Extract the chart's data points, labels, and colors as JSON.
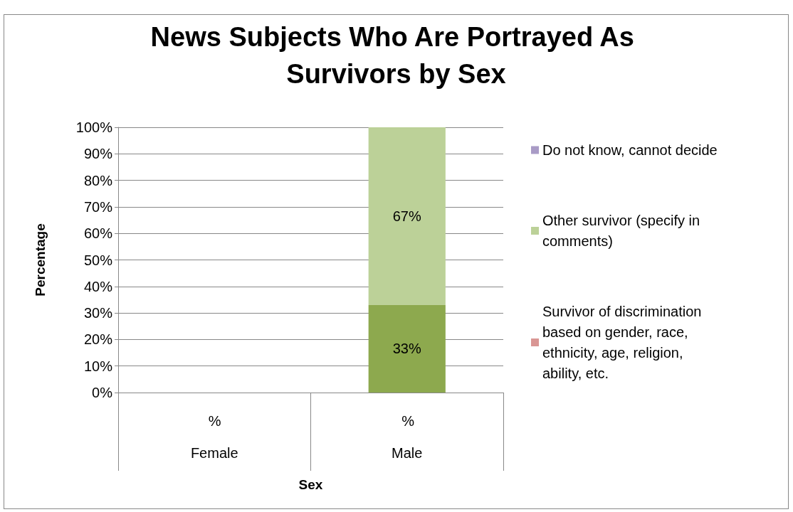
{
  "chart_data": {
    "type": "bar",
    "title": "News Subjects Who Are Portrayed As Survivors by Sex",
    "xlabel": "Sex",
    "ylabel": "Percentage",
    "categories": [
      "Female",
      "Male"
    ],
    "stacked": true,
    "series": [
      {
        "name": "Survivor of discrimination based on gender, race, ethnicity, age, religion, ability, etc.",
        "color": "#d99694",
        "values": [
          null,
          null
        ]
      },
      {
        "color": "#8da94e",
        "values": [
          null,
          33
        ],
        "value_labels": [
          null,
          "33%"
        ]
      },
      {
        "name": "Other survivor (specify in comments)",
        "color": "#bcd198",
        "values": [
          null,
          67
        ],
        "value_labels": [
          null,
          "67%"
        ]
      },
      {
        "name": "Do not know, cannot decide",
        "color": "#a99bc6",
        "values": [
          null,
          null
        ]
      }
    ],
    "ylim": [
      0,
      100
    ],
    "yticks": [
      {
        "value": 0,
        "label": "0%"
      },
      {
        "value": 10,
        "label": "10%"
      },
      {
        "value": 20,
        "label": "20%"
      },
      {
        "value": 30,
        "label": "30%"
      },
      {
        "value": 40,
        "label": "40%"
      },
      {
        "value": 50,
        "label": "50%"
      },
      {
        "value": 60,
        "label": "60%"
      },
      {
        "value": 70,
        "label": "70%"
      },
      {
        "value": 80,
        "label": "80%"
      },
      {
        "value": 90,
        "label": "90%"
      },
      {
        "value": 100,
        "label": "100%"
      }
    ],
    "grid": "y",
    "legend": "right",
    "annotations": [
      "%",
      "%"
    ]
  }
}
